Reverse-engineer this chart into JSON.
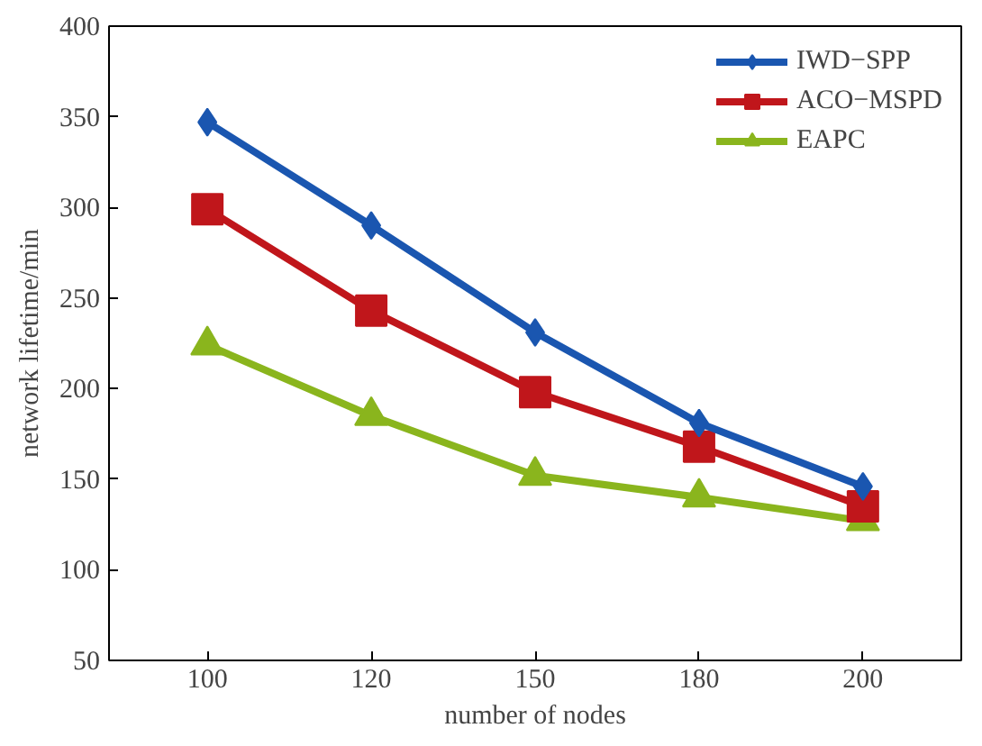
{
  "chart_data": {
    "type": "line",
    "xlabel": "number of nodes",
    "ylabel": "network lifetime/min",
    "categories": [
      "100",
      "120",
      "150",
      "180",
      "200"
    ],
    "ylim": [
      50,
      400
    ],
    "yticks": [
      50,
      100,
      150,
      200,
      250,
      300,
      350,
      400
    ],
    "grid": false,
    "legend": "top right",
    "line_style": "solid",
    "series": [
      {
        "name": "IWD−SPP",
        "color": "#1a56b0",
        "marker": "diamond",
        "values": [
          347,
          290,
          231,
          181,
          146
        ]
      },
      {
        "name": "ACO−MSPD",
        "color": "#c0161b",
        "marker": "square",
        "values": [
          299,
          243,
          198,
          168,
          135
        ]
      },
      {
        "name": "EAPC",
        "color": "#8ab51d",
        "marker": "triangle",
        "values": [
          224,
          185,
          152,
          140,
          127
        ]
      }
    ]
  }
}
